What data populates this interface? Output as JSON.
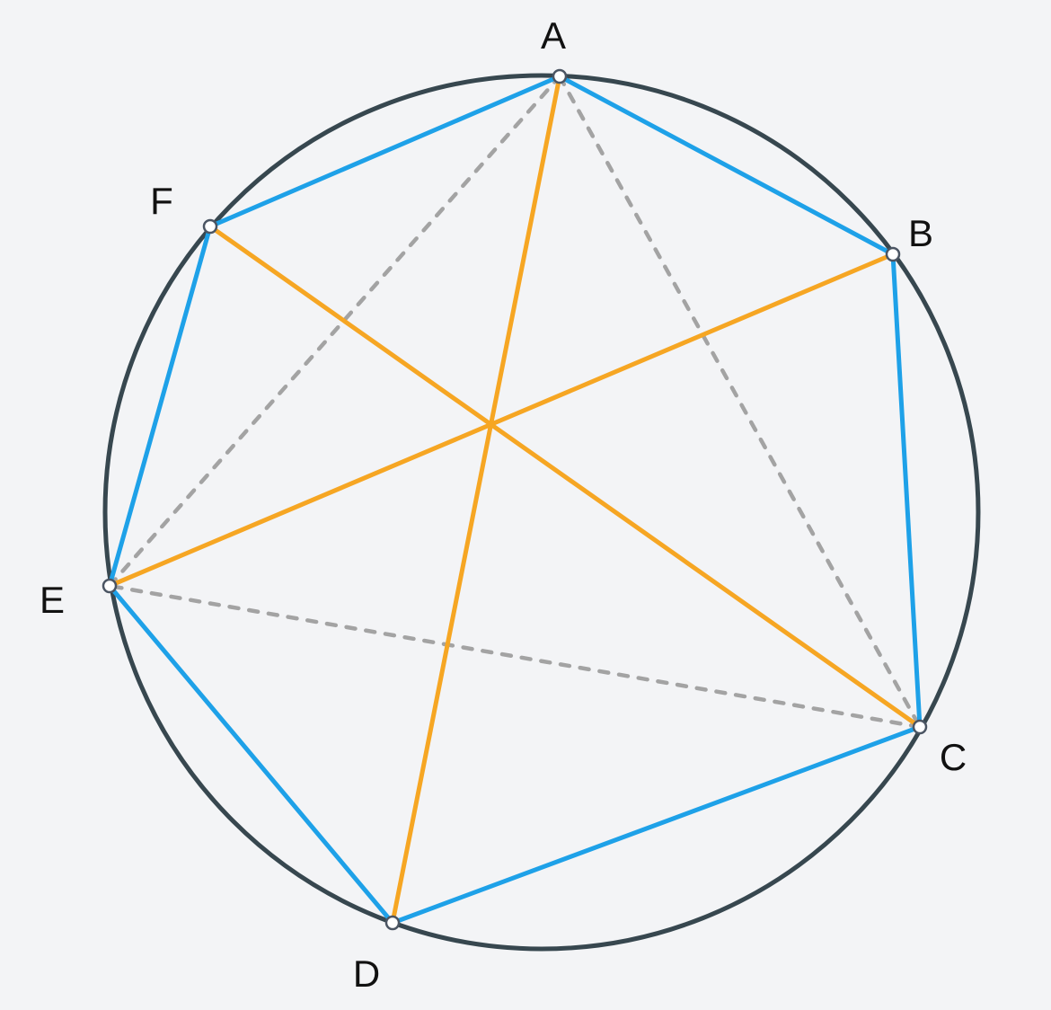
{
  "diagram": {
    "colors": {
      "background": "#f3f4f6",
      "circle": "#37474f",
      "hexagon": "#1ea1e8",
      "diagonal": "#f6a623",
      "dashed": "#a3a3a3",
      "vertex_fill": "#ffffff",
      "vertex_stroke": "#4b5563",
      "label": "#111111"
    },
    "points": [
      {
        "id": "A",
        "label": "A"
      },
      {
        "id": "B",
        "label": "B"
      },
      {
        "id": "C",
        "label": "C"
      },
      {
        "id": "D",
        "label": "D"
      },
      {
        "id": "E",
        "label": "E"
      },
      {
        "id": "F",
        "label": "F"
      }
    ],
    "polygon": [
      "A",
      "B",
      "C",
      "D",
      "E",
      "F"
    ],
    "diagonals": [
      [
        "A",
        "D"
      ],
      [
        "B",
        "E"
      ],
      [
        "C",
        "F"
      ]
    ],
    "dashed_segments": [
      [
        "A",
        "C"
      ],
      [
        "C",
        "E"
      ],
      [
        "E",
        "A"
      ]
    ]
  }
}
